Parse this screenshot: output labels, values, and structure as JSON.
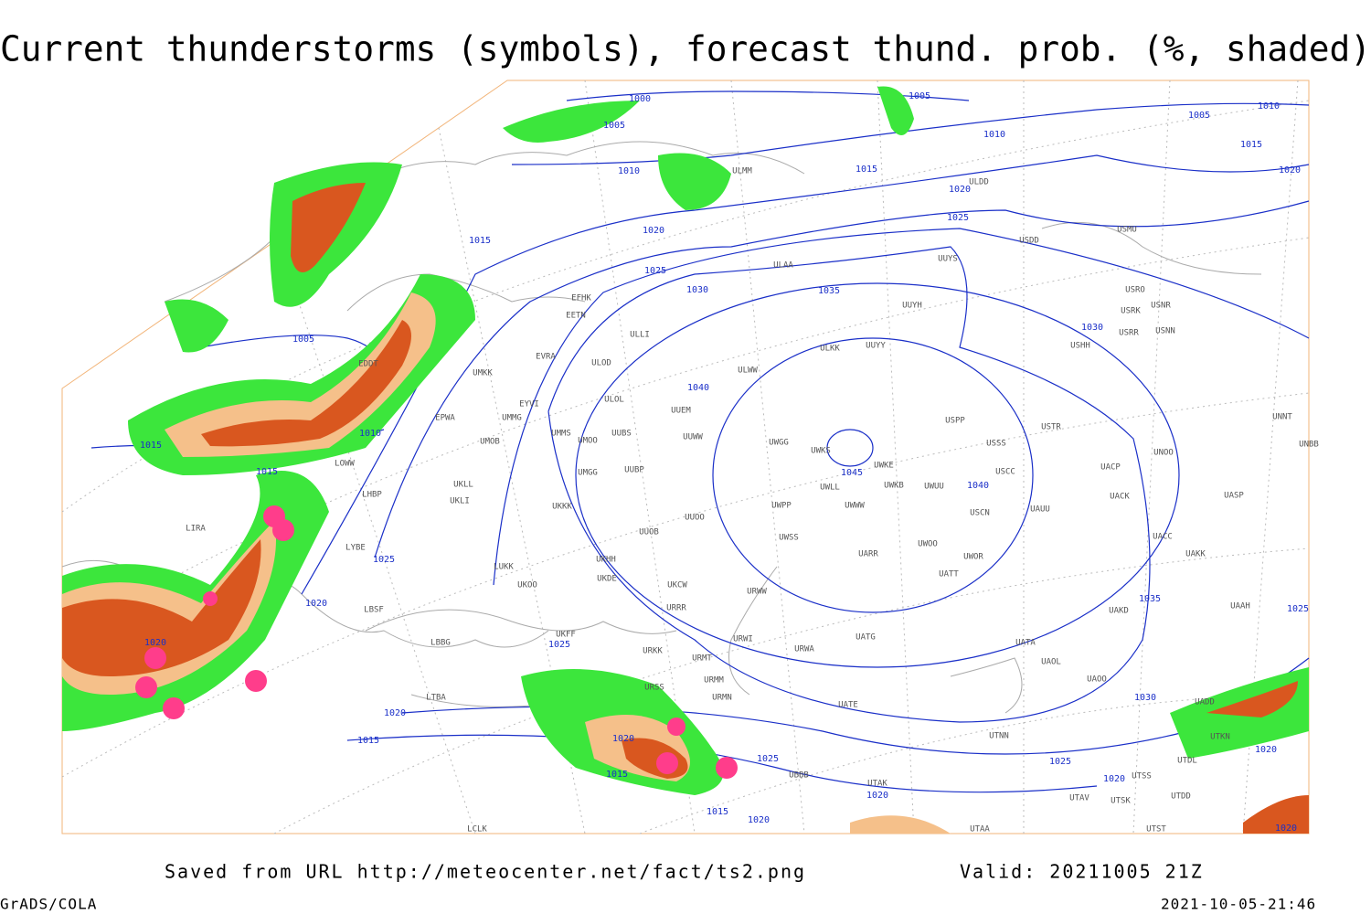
{
  "header": {
    "title": "Current thunderstorms (symbols), forecast thund. prob. (%, shaded)"
  },
  "footer": {
    "source": "Saved from URL http://meteocenter.net/fact/ts2.png",
    "valid": "Valid: 20211005 21Z",
    "software": "GrADS/COLA",
    "timestamp": "2021-10-05-21:46"
  },
  "isobar_labels": [
    1000,
    1005,
    1005,
    1005,
    1010,
    1010,
    1010,
    1015,
    1015,
    1015,
    1020,
    1020,
    1020,
    1025,
    1025,
    1030,
    1035,
    1030,
    1040,
    1045,
    1040,
    1005,
    1010,
    1015,
    1015,
    1025,
    1020,
    1035,
    1025,
    1025,
    1020,
    1020,
    1015,
    1030,
    1020,
    1025,
    1015,
    1025,
    1020,
    1020,
    1015,
    1020,
    1020,
    1020
  ],
  "stations": [
    "ULMM",
    "ULDD",
    "USDD",
    "USMU",
    "ULAA",
    "UUYS",
    "USRO",
    "USRK",
    "USNR",
    "USRR",
    "USNN",
    "UUYH",
    "USHH",
    "ULKK",
    "UUYY",
    "ULWW",
    "UUEM",
    "UUWW",
    "UWGG",
    "UWKS",
    "UWKE",
    "UWKB",
    "UWUU",
    "USPP",
    "USSS",
    "USTR",
    "USCC",
    "USCN",
    "UAUU",
    "UACP",
    "UACK",
    "UNOO",
    "UNNT",
    "UNBB",
    "UASP",
    "UWLL",
    "UWWW",
    "UWPP",
    "UWSS",
    "UARR",
    "UWOO",
    "UWOR",
    "UATT",
    "UACC",
    "UAKK",
    "UAKD",
    "UAAH",
    "UATA",
    "UAOL",
    "UATG",
    "URWA",
    "URWI",
    "URWW",
    "UUOO",
    "UUOB",
    "UUBP",
    "UUBS",
    "UMMS",
    "UMOO",
    "UMGG",
    "UKKK",
    "UKHH",
    "UKDE",
    "UKCW",
    "URRR",
    "UKFF",
    "URKK",
    "URMT",
    "URMM",
    "URSS",
    "URMN",
    "UATE",
    "UAOO",
    "UADD",
    "UTNN",
    "UTKN",
    "UTDL",
    "UTSS",
    "UTSK",
    "UTAV",
    "UTAA",
    "UTST",
    "UTDD",
    "UBBB",
    "UTAK",
    "ULOL",
    "ULOD",
    "ULLI",
    "EFHK",
    "EETN",
    "EVRA",
    "EYVI",
    "UMMG",
    "UMOB",
    "UMKK",
    "EPWA",
    "EDDT",
    "LOWW",
    "LHBP",
    "UKLL",
    "UKLI",
    "LIRA",
    "LYBE",
    "LUKK",
    "UKOO",
    "LBSF",
    "LBBG",
    "LTBA",
    "LCLK"
  ]
}
